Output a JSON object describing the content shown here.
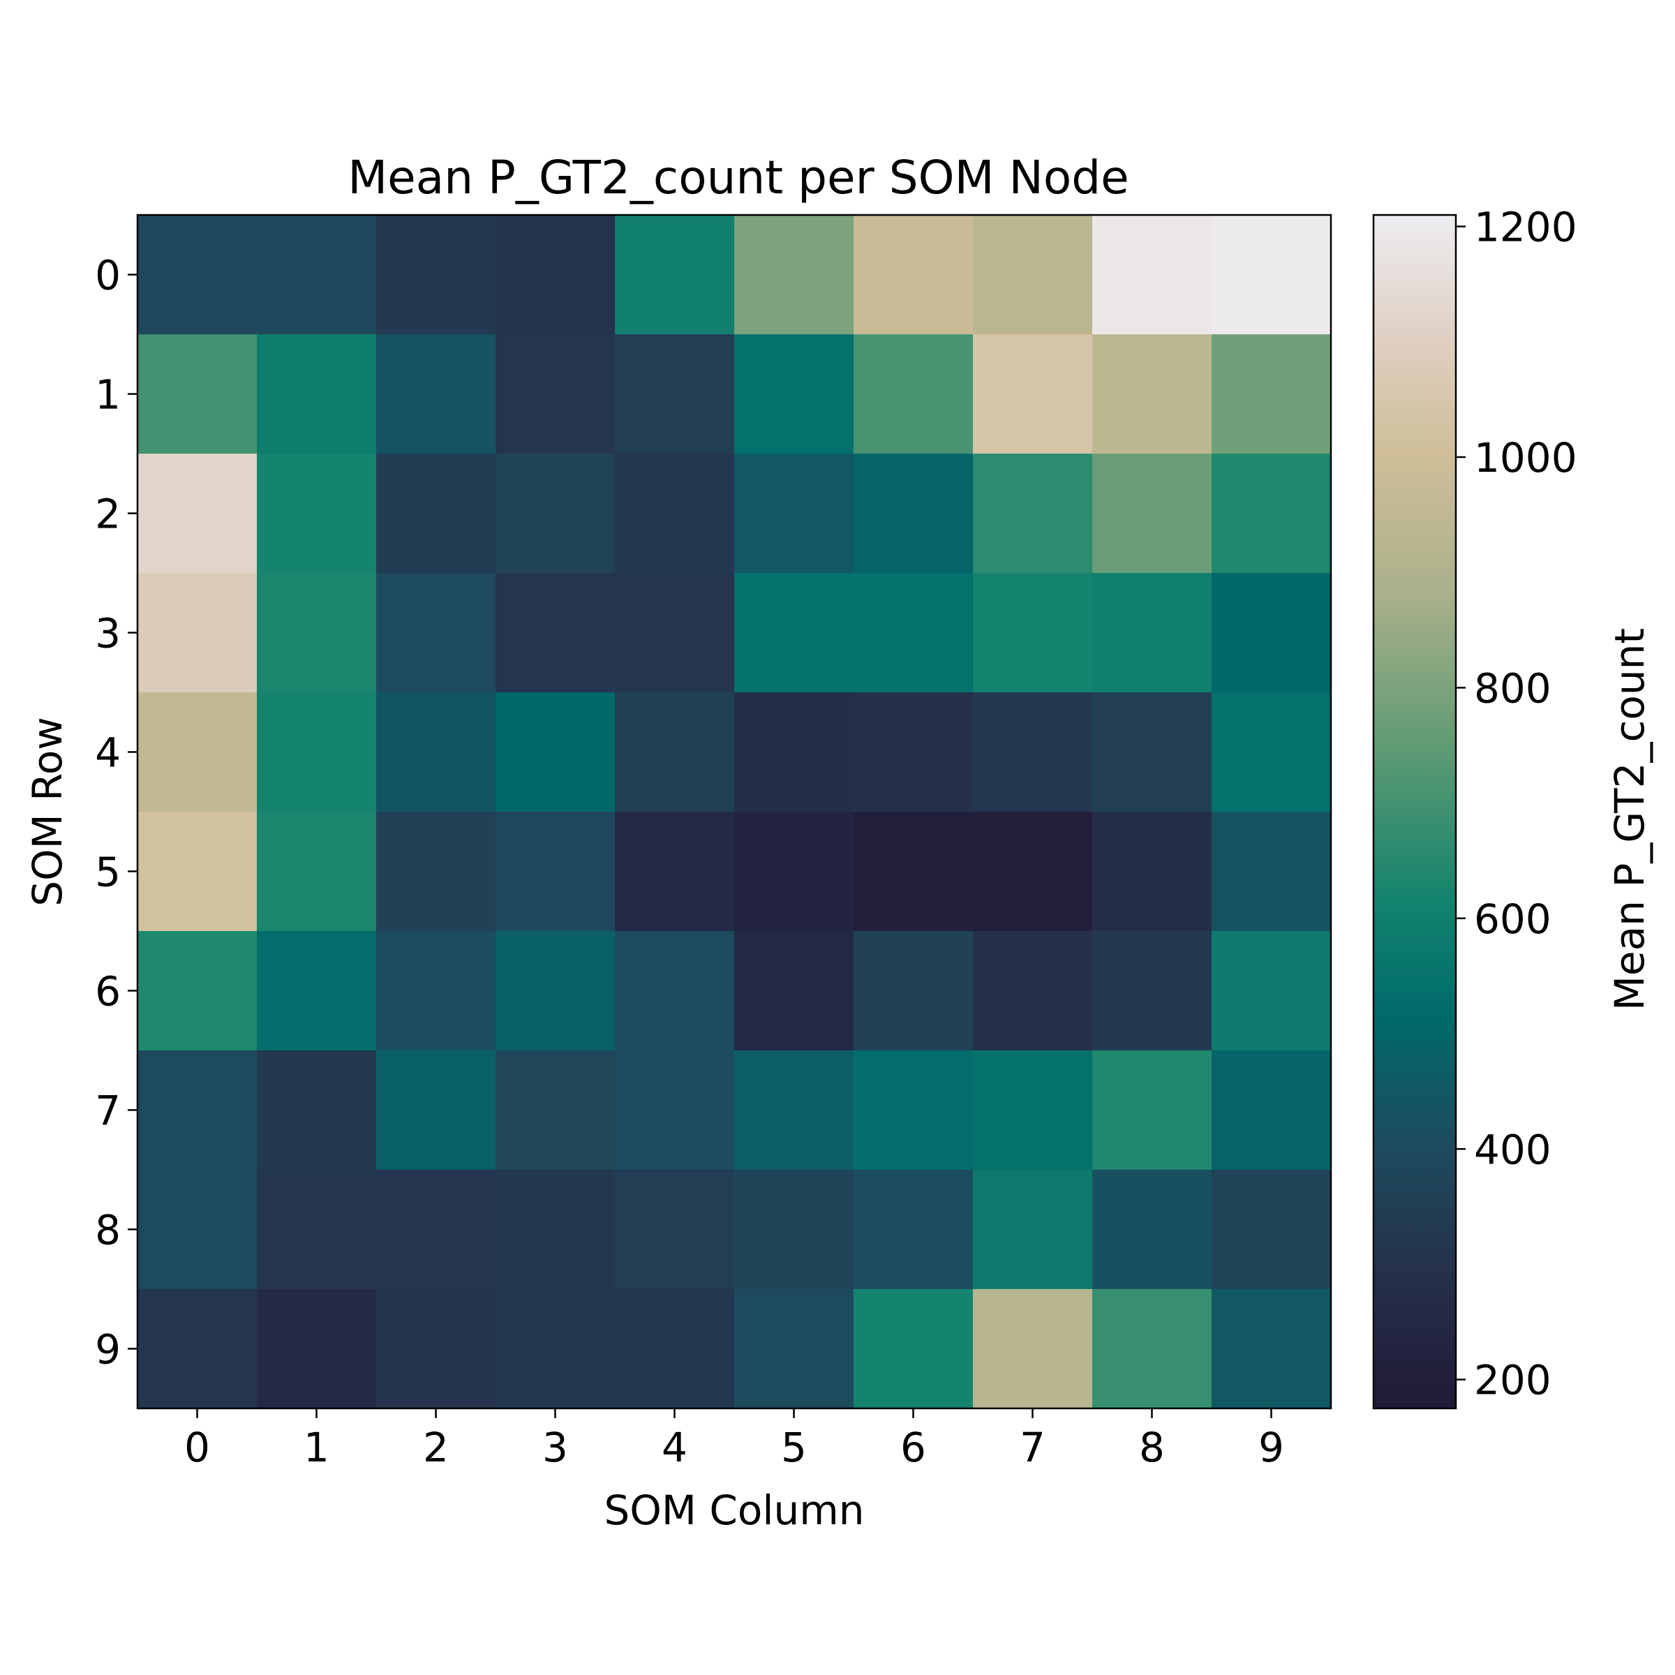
{
  "chart_data": {
    "type": "heatmap",
    "title": "Mean P_GT2_count per SOM Node",
    "xlabel": "SOM Column",
    "ylabel": "SOM Row",
    "x_categories": [
      "0",
      "1",
      "2",
      "3",
      "4",
      "5",
      "6",
      "7",
      "8",
      "9"
    ],
    "y_categories": [
      "0",
      "1",
      "2",
      "3",
      "4",
      "5",
      "6",
      "7",
      "8",
      "9"
    ],
    "values": [
      [
        390,
        390,
        330,
        300,
        600,
        800,
        980,
        930,
        1190,
        1200
      ],
      [
        700,
        590,
        430,
        310,
        350,
        540,
        710,
        1040,
        940,
        780
      ],
      [
        1120,
        620,
        340,
        370,
        320,
        450,
        490,
        660,
        770,
        640
      ],
      [
        1080,
        630,
        400,
        310,
        310,
        540,
        540,
        620,
        600,
        510
      ],
      [
        960,
        620,
        440,
        510,
        360,
        280,
        290,
        320,
        350,
        540
      ],
      [
        1020,
        630,
        360,
        390,
        260,
        230,
        200,
        200,
        280,
        430
      ],
      [
        640,
        530,
        410,
        480,
        400,
        250,
        360,
        290,
        330,
        580
      ],
      [
        400,
        330,
        480,
        380,
        410,
        470,
        530,
        540,
        640,
        490
      ],
      [
        400,
        310,
        310,
        320,
        350,
        370,
        410,
        580,
        420,
        370
      ],
      [
        310,
        260,
        300,
        330,
        320,
        400,
        620,
        920,
        680,
        450
      ]
    ],
    "colorbar": {
      "label": "Mean P_GT2_count",
      "vmin": 175,
      "vmax": 1210,
      "ticks": [
        "200",
        "400",
        "600",
        "800",
        "1000",
        "1200"
      ],
      "colormap": "gist_earth-like: dark navy → teal → green → tan → near-white",
      "stops": [
        {
          "v": 0.0,
          "c": "#211a36"
        },
        {
          "v": 0.12,
          "c": "#25324d"
        },
        {
          "v": 0.22,
          "c": "#1d4b5d"
        },
        {
          "v": 0.33,
          "c": "#006b6b"
        },
        {
          "v": 0.43,
          "c": "#15846e"
        },
        {
          "v": 0.55,
          "c": "#5c9a73"
        },
        {
          "v": 0.68,
          "c": "#a9b08a"
        },
        {
          "v": 0.8,
          "c": "#cfbe98"
        },
        {
          "v": 0.9,
          "c": "#dfd0c4"
        },
        {
          "v": 1.0,
          "c": "#eeedf1"
        }
      ]
    }
  }
}
